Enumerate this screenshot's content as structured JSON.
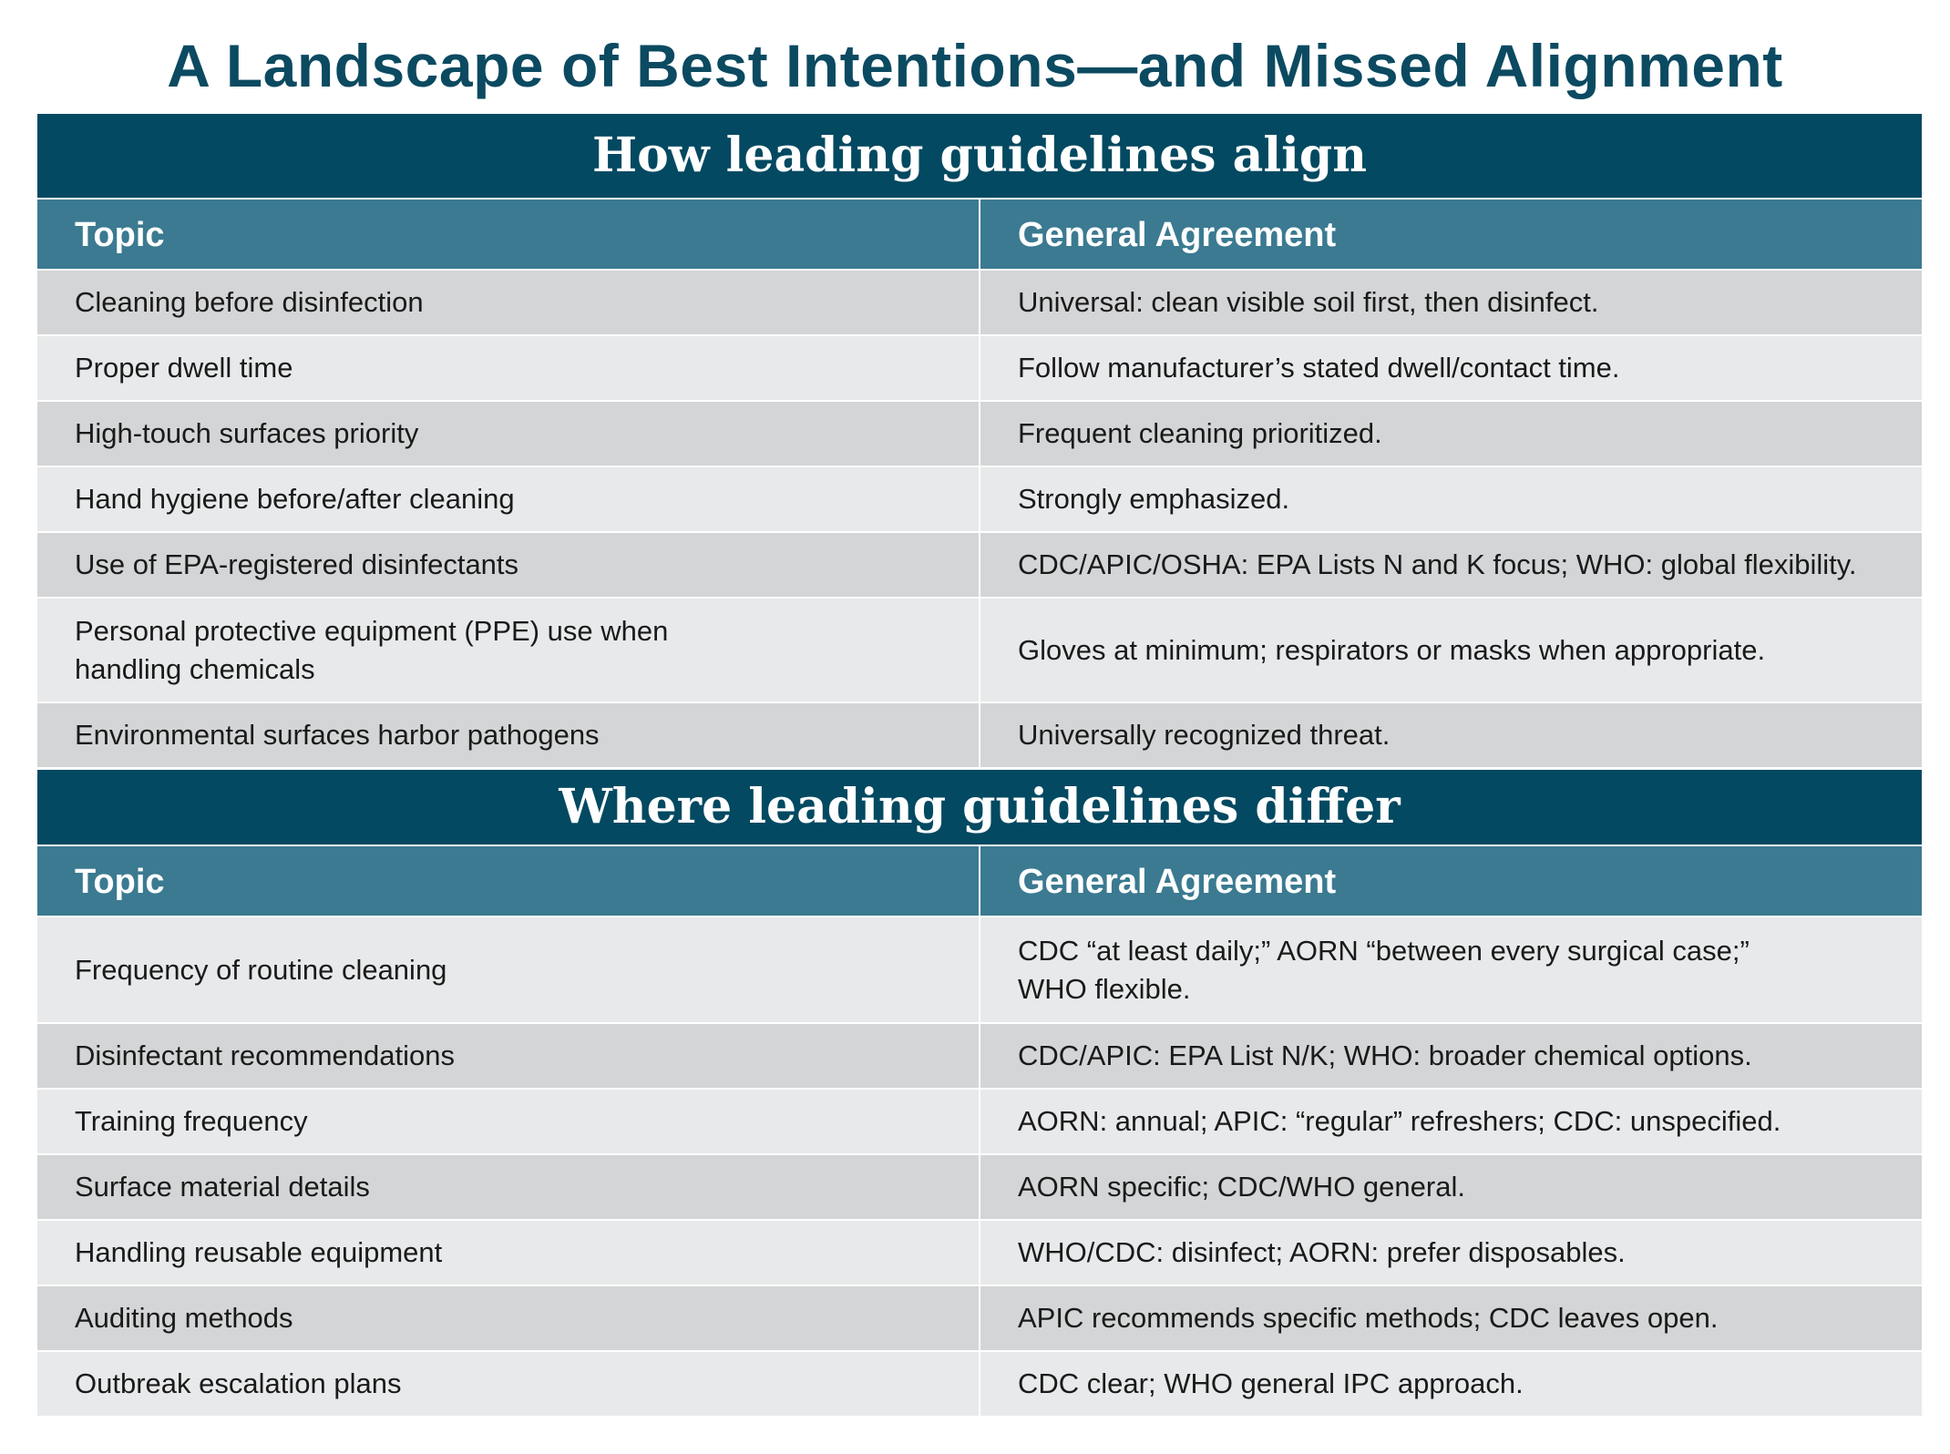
{
  "title": "A Landscape of Best Intentions—and Missed Alignment",
  "align_section": {
    "heading": "How leading guidelines align",
    "col_topic": "Topic",
    "col_agreement": "General Agreement",
    "rows": [
      {
        "topic": "Cleaning before disinfection",
        "agreement": "Universal: clean visible soil first, then disinfect."
      },
      {
        "topic": "Proper dwell time",
        "agreement": "Follow manufacturer’s stated dwell/contact time."
      },
      {
        "topic": "High-touch surfaces priority",
        "agreement": "Frequent cleaning prioritized."
      },
      {
        "topic": "Hand hygiene before/after cleaning",
        "agreement": "Strongly emphasized."
      },
      {
        "topic": "Use of EPA-registered disinfectants",
        "agreement": "CDC/APIC/OSHA: EPA Lists N and K focus; WHO: global flexibility."
      },
      {
        "topic": "Personal protective equipment (PPE) use when handling chemicals",
        "agreement": "Gloves at minimum; respirators or masks when appropriate."
      },
      {
        "topic": "Environmental surfaces harbor pathogens",
        "agreement": "Universally recognized threat."
      }
    ]
  },
  "differ_section": {
    "heading": "Where leading guidelines differ",
    "col_topic": "Topic",
    "col_agreement": "General Agreement",
    "rows": [
      {
        "topic": "Frequency of routine cleaning",
        "agreement": "CDC “at least daily;” AORN “between every surgical case;” WHO flexible."
      },
      {
        "topic": "Disinfectant recommendations",
        "agreement": "CDC/APIC: EPA List N/K; WHO: broader chemical options."
      },
      {
        "topic": "Training frequency",
        "agreement": "AORN: annual; APIC: “regular” refreshers; CDC: unspecified."
      },
      {
        "topic": "Surface material details",
        "agreement": "AORN specific; CDC/WHO general."
      },
      {
        "topic": "Handling reusable equipment",
        "agreement": "WHO/CDC: disinfect; AORN: prefer disposables."
      },
      {
        "topic": "Auditing methods",
        "agreement": "APIC recommends specific methods; CDC leaves open."
      },
      {
        "topic": "Outbreak escalation plans",
        "agreement": "CDC clear; WHO general IPC approach."
      }
    ]
  },
  "colors": {
    "title": "#0b4a61",
    "section_bg": "#024961",
    "header_bg": "#3b7a91",
    "row_dark": "#d4d5d6",
    "row_light": "#e8e9ea"
  }
}
